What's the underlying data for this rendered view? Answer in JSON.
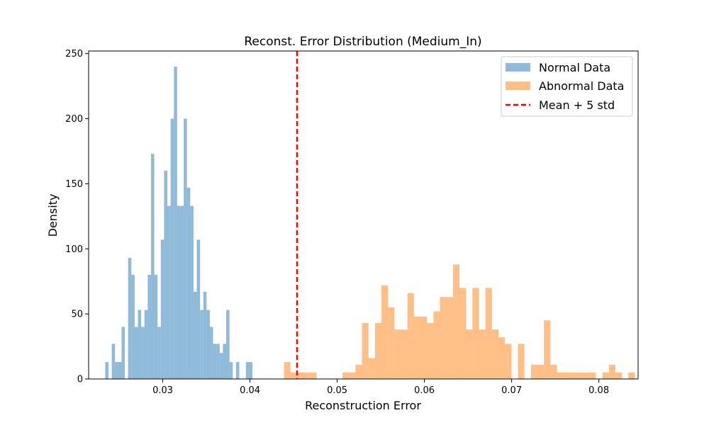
{
  "chart_data": {
    "type": "histogram",
    "title": "Reconst. Error Distribution (Medium_In)",
    "xlabel": "Reconstruction Error",
    "ylabel": "Density",
    "xlim": [
      0.0215,
      0.0845
    ],
    "ylim": [
      0,
      252
    ],
    "xticks": [
      0.03,
      0.04,
      0.05,
      0.06,
      0.07,
      0.08
    ],
    "xtick_labels": [
      "0.03",
      "0.04",
      "0.05",
      "0.06",
      "0.07",
      "0.08"
    ],
    "yticks": [
      0,
      50,
      100,
      150,
      200,
      250
    ],
    "ytick_labels": [
      "0",
      "50",
      "100",
      "150",
      "200",
      "250"
    ],
    "legend_position": "top-right",
    "threshold": {
      "name": "Mean + 5 std",
      "x": 0.0454,
      "color": "#ff0000",
      "style": "dashed"
    },
    "series": [
      {
        "name": "Normal Data",
        "color": "#1f77b4",
        "alpha": 0.5,
        "bin_start": 0.0234,
        "bin_width": 0.000375,
        "values": [
          13,
          0,
          27,
          13,
          13,
          40,
          0,
          93,
          80,
          40,
          53,
          40,
          53,
          80,
          173,
          80,
          40,
          107,
          160,
          133,
          200,
          240,
          133,
          133,
          200,
          147,
          133,
          67,
          107,
          53,
          67,
          53,
          40,
          27,
          27,
          20,
          27,
          53,
          13,
          0,
          13,
          0,
          0,
          13,
          13
        ]
      },
      {
        "name": "Abnormal Data",
        "color": "#ff7f0e",
        "alpha": 0.5,
        "bin_start": 0.0439,
        "bin_width": 0.000745,
        "values": [
          13,
          5,
          5,
          5,
          5,
          0,
          0,
          0,
          0,
          5,
          5,
          11,
          43,
          16,
          43,
          72,
          55,
          38,
          38,
          66,
          48,
          48,
          43,
          52,
          63,
          63,
          88,
          70,
          38,
          70,
          38,
          70,
          38,
          32,
          27,
          0,
          27,
          0,
          11,
          11,
          45,
          11,
          5,
          5,
          5,
          5,
          5,
          5,
          0,
          5,
          11,
          5,
          0,
          5
        ]
      }
    ]
  }
}
